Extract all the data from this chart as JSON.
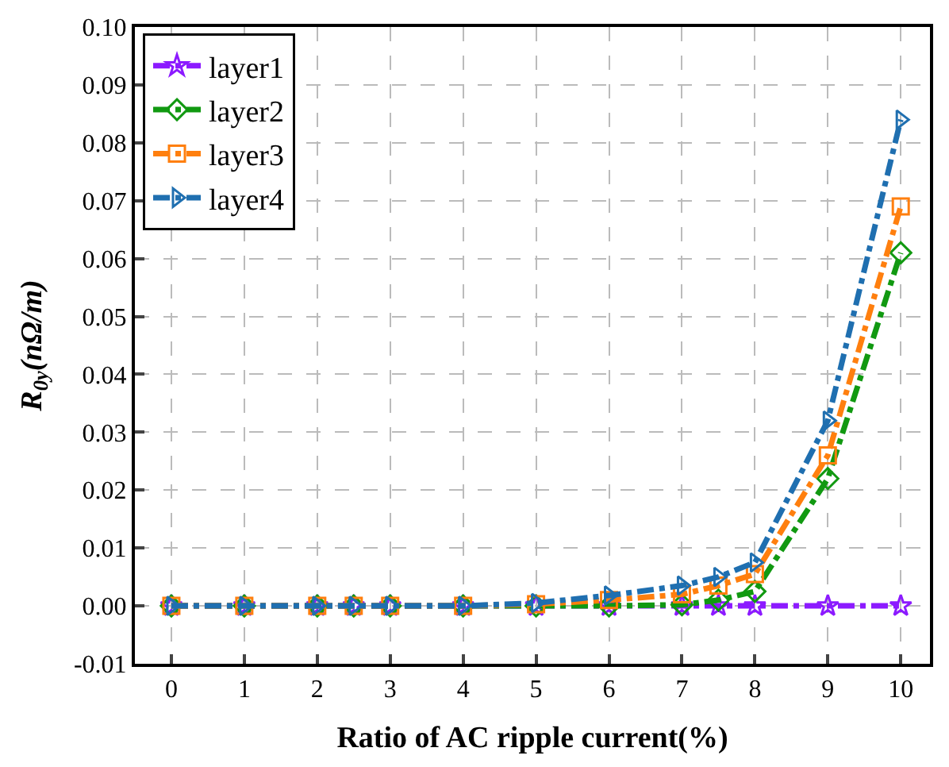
{
  "chart_data": {
    "type": "line",
    "xlabel": "Ratio of AC ripple current(%)",
    "ylabel": "R$_{0y}$(nΩ/m)",
    "x": [
      0,
      1,
      2,
      2.5,
      3,
      4,
      5,
      6,
      7,
      7.5,
      8,
      9,
      10
    ],
    "series": [
      {
        "name": "layer1",
        "color": "#8c1aff",
        "marker": "star",
        "values": [
          0,
          0,
          0,
          0,
          0,
          0,
          0,
          0,
          0,
          0,
          0,
          0,
          0
        ]
      },
      {
        "name": "layer2",
        "color": "#119911",
        "marker": "diamond",
        "values": [
          0,
          0,
          0,
          0,
          0,
          0,
          0,
          0,
          0.0002,
          0.001,
          0.0025,
          0.022,
          0.061
        ]
      },
      {
        "name": "layer3",
        "color": "#ff7f0e",
        "marker": "square",
        "values": [
          0,
          0,
          0,
          0,
          0,
          0,
          0.0003,
          0.001,
          0.002,
          0.0035,
          0.0055,
          0.026,
          0.069
        ]
      },
      {
        "name": "layer4",
        "color": "#1f6fb0",
        "marker": "triangle",
        "values": [
          0,
          0,
          0,
          0,
          0,
          0,
          0.0005,
          0.0018,
          0.0035,
          0.005,
          0.0075,
          0.032,
          0.084
        ]
      }
    ],
    "line_style": "dashdot",
    "xlim": [
      -0.5,
      10.4
    ],
    "xticks": [
      0,
      1,
      2,
      3,
      4,
      5,
      6,
      7,
      8,
      9,
      10
    ],
    "ylim": [
      -0.01,
      0.1
    ],
    "yticks": [
      {
        "value": -0.01,
        "label": "-0.01"
      },
      {
        "value": 0,
        "label": "0.00"
      },
      {
        "value": 0.01,
        "label": "0.01"
      },
      {
        "value": 0.02,
        "label": "0.02"
      },
      {
        "value": 0.03,
        "label": "0.03"
      },
      {
        "value": 0.04,
        "label": "0.04"
      },
      {
        "value": 0.05,
        "label": "0.05"
      },
      {
        "value": 0.06,
        "label": "0.06"
      },
      {
        "value": 0.07,
        "label": "0.07"
      },
      {
        "value": 0.08,
        "label": "0.08"
      },
      {
        "value": 0.09,
        "label": "0.09"
      },
      {
        "value": 0.1,
        "label": "0.10"
      }
    ],
    "grid": true,
    "legend": "top left"
  }
}
